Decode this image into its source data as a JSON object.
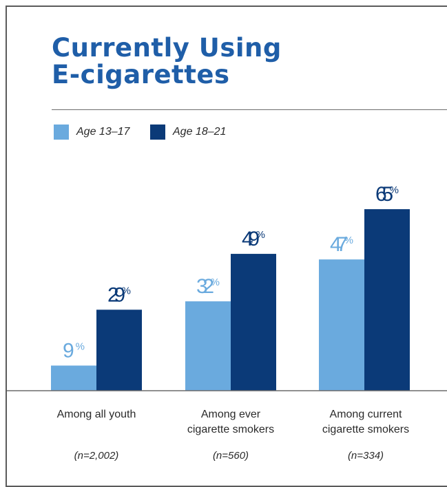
{
  "title": "Currently Using\nE-cigarettes",
  "legend": [
    {
      "label": "Age 13–17",
      "color": "#6aaade"
    },
    {
      "label": "Age 18–21",
      "color": "#0b3a78"
    }
  ],
  "chart_data": {
    "type": "bar",
    "title": "Currently Using E-cigarettes",
    "categories": [
      "Among all youth",
      "Among ever\ncigarette smokers",
      "Among current\ncigarette smokers"
    ],
    "sample_sizes": [
      "(n=2,002)",
      "(n=560)",
      "(n=334)"
    ],
    "series": [
      {
        "name": "Age 13–17",
        "color": "#6aaade",
        "values": [
          9,
          32,
          47
        ]
      },
      {
        "name": "Age 18–21",
        "color": "#0b3a78",
        "values": [
          29,
          49,
          65
        ]
      }
    ],
    "value_suffix": "%",
    "ylim": [
      0,
      100
    ],
    "grid": false,
    "legend_position": "top-left"
  }
}
